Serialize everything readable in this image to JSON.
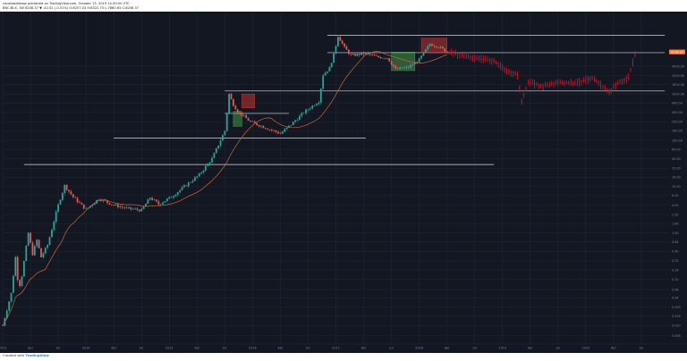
{
  "header": {
    "publisher": "cocabbs4deaw published on TradingView.com, October 15, 2019 14:39:50 UTC",
    "symbol_line": "BNC:BLX, 1W  8208.37 ▼ -42.02 (-0.51%)  O:8257.03  H:8322.75  L:7880.63  C:8208.37"
  },
  "footer": {
    "created_with": "Created with",
    "brand": "TradingView"
  },
  "colors": {
    "background": "#131722",
    "grid": "#232836",
    "axis_text": "#7f8595",
    "up": "#26a69a",
    "down": "#ef5350",
    "projection": "#b71c2c",
    "moving_average": "#c0693d",
    "levels": "#d8dae0",
    "box_green": "#4caf50",
    "box_red": "#e53935",
    "price_tag": "#ff7d3a"
  },
  "chart_data": {
    "type": "candlestick",
    "scale": "log",
    "ylim": [
      0.0,
      65000
    ],
    "price_ticks": [
      "4000.00",
      "2500.00",
      "1600.00",
      "1000.00",
      "640.00",
      "400.00",
      "250.00",
      "160.00",
      "100.00",
      "64.00",
      "40.00",
      "25.00",
      "16.00",
      "10.00",
      "6.40",
      "4.00",
      "2.50",
      "1.60",
      "1.00",
      "0.64",
      "0.40",
      "0.25",
      "0.16",
      "0.10",
      "0.06",
      "0.04",
      "0.025",
      "0.016",
      "0.010",
      "0.006",
      "0.004"
    ],
    "time_ticks": [
      "2013",
      "Apr",
      "Jul",
      "2014",
      "Apr",
      "Jul",
      "2015",
      "Apr",
      "Jul",
      "2016",
      "Apr",
      "Jul",
      "2017",
      "Apr",
      "Jul",
      "2018",
      "Apr",
      "Jul",
      "2019",
      "Apr",
      "Jul",
      "2020",
      "Apr",
      "Jul",
      "2021",
      "Apr",
      "Jul",
      "2022",
      "Apr",
      "Jul",
      "2023"
    ],
    "current_price_label": "8208.37",
    "anchors": [
      [
        0.0,
        0.01
      ],
      [
        4.0,
        0.05
      ],
      [
        6.0,
        0.3
      ],
      [
        7.5,
        0.06
      ],
      [
        9.0,
        0.12
      ],
      [
        12.0,
        1.0
      ],
      [
        14.0,
        0.35
      ],
      [
        16.0,
        0.7
      ],
      [
        18.0,
        0.3
      ],
      [
        21.0,
        0.55
      ],
      [
        26.0,
        4.0
      ],
      [
        29.0,
        10.5
      ],
      [
        33.0,
        6.0
      ],
      [
        39.0,
        3.2
      ],
      [
        45.0,
        5.5
      ],
      [
        52.0,
        4.0
      ],
      [
        58.0,
        3.4
      ],
      [
        65.0,
        3.1
      ],
      [
        69.0,
        5.8
      ],
      [
        73.0,
        4.2
      ],
      [
        79.0,
        6.0
      ],
      [
        85.0,
        10.0
      ],
      [
        92.0,
        18.0
      ],
      [
        98.0,
        40.0
      ],
      [
        104.0,
        160.0
      ],
      [
        106.0,
        1000.0
      ],
      [
        107.5,
        650.0
      ],
      [
        110.0,
        420.0
      ],
      [
        116.0,
        250.0
      ],
      [
        124.0,
        180.0
      ],
      [
        130.0,
        140.0
      ],
      [
        135.0,
        220.0
      ],
      [
        141.0,
        400.0
      ],
      [
        148.0,
        700.0
      ],
      [
        150.0,
        2600.0
      ],
      [
        153.0,
        3600.0
      ],
      [
        155.0,
        7000.0
      ],
      [
        157.0,
        18000.0
      ],
      [
        160.0,
        10000.0
      ],
      [
        163.0,
        6800.0
      ],
      [
        170.0,
        7500.0
      ],
      [
        175.0,
        6300.0
      ],
      [
        180.0,
        6100.0
      ],
      [
        184.0,
        3400.0
      ],
      [
        190.0,
        3800.0
      ],
      [
        195.0,
        5500.0
      ],
      [
        200.0,
        12000.0
      ],
      [
        204.0,
        10500.0
      ],
      [
        208.0,
        8200.0
      ]
    ],
    "projection_anchors": [
      [
        208.0,
        8200.0
      ],
      [
        215.0,
        7000.0
      ],
      [
        222.0,
        5800.0
      ],
      [
        230.0,
        5200.0
      ],
      [
        236.0,
        3200.0
      ],
      [
        241.0,
        2600.0
      ],
      [
        243.0,
        700.0
      ],
      [
        246.0,
        1800.0
      ],
      [
        253.0,
        1500.0
      ],
      [
        260.0,
        1800.0
      ],
      [
        268.0,
        1700.0
      ],
      [
        276.0,
        2200.0
      ],
      [
        280.0,
        1600.0
      ],
      [
        284.0,
        1100.0
      ],
      [
        288.0,
        1700.0
      ],
      [
        293.0,
        2300.0
      ],
      [
        296.0,
        7000.0
      ]
    ],
    "levels": [
      {
        "price": 18500.0,
        "from": 152,
        "to": 310
      },
      {
        "price": 7800.0,
        "from": 152,
        "to": 310
      },
      {
        "price": 1160.0,
        "from": 104,
        "to": 310
      },
      {
        "price": 380.0,
        "from": 104,
        "to": 134
      },
      {
        "price": 112.0,
        "from": 52,
        "to": 170
      },
      {
        "price": 30.0,
        "from": 10,
        "to": 230
      }
    ],
    "boxes": [
      {
        "kind": "green",
        "from": 108,
        "to": 112,
        "low": 200.0,
        "high": 420.0
      },
      {
        "kind": "red",
        "from": 112,
        "to": 118,
        "low": 500.0,
        "high": 1000.0
      },
      {
        "kind": "green",
        "from": 182,
        "to": 193,
        "low": 3200.0,
        "high": 8000.0
      },
      {
        "kind": "red",
        "from": 196,
        "to": 208,
        "low": 7800.0,
        "high": 16000.0
      }
    ]
  }
}
